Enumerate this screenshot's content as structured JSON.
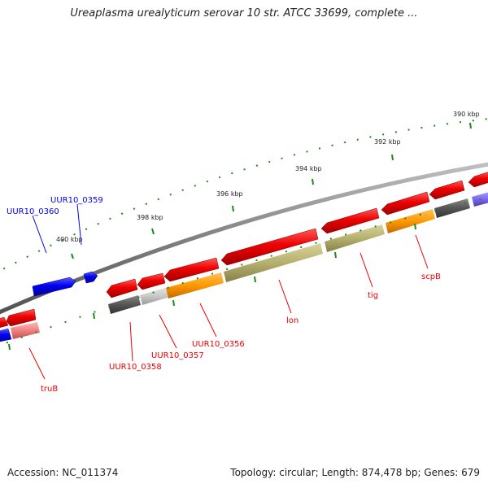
{
  "title": "Ureaplasma urealyticum serovar 10 str. ATCC 33699, complete ...",
  "footer": {
    "accession": "Accession: NC_011374",
    "summary": "Topology: circular; Length: 874,478 bp; Genes: 679"
  },
  "scale_ticks": [
    "390 kbp",
    "392 kbp",
    "394 kbp",
    "396 kbp",
    "398 kbp",
    "400 kbp"
  ],
  "gene_labels": {
    "forward": [
      "UUR10_0359",
      "UUR10_0360"
    ],
    "reverse": [
      "UUR10_0358",
      "UUR10_0357",
      "UUR10_0356",
      "lon",
      "tig",
      "scpB",
      "truB"
    ]
  },
  "colors": {
    "forward_strand": "#0000ee",
    "reverse_strand": "#ee0000",
    "backbone": "#808080",
    "tick_marks": "#1a8a1a",
    "cog_orange": "#ff9900",
    "cog_olive": "#b5b06e",
    "cog_dark_gray": "#555555",
    "cog_light_gray": "#c8c8c8",
    "cog_pink": "#f08080",
    "cog_purple": "#7b68ee"
  }
}
